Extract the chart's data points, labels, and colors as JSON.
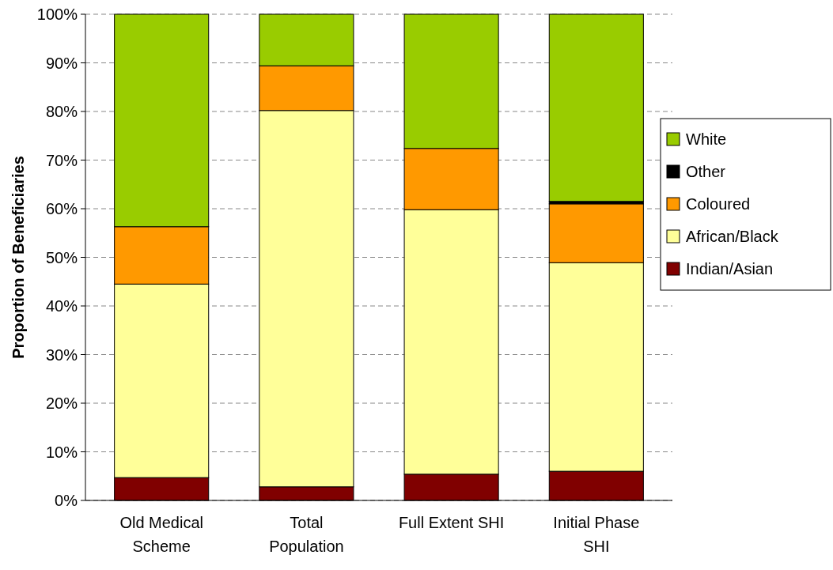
{
  "chart_data": {
    "type": "bar",
    "stacked": true,
    "ylabel": "Proportion of Beneficiaries",
    "categories": [
      "Old Medical\nScheme",
      "Total\nPopulation",
      "Full Extent SHI",
      "Initial Phase\nSHI"
    ],
    "series": [
      {
        "name": "Indian/Asian",
        "color": "#800000",
        "values": [
          4.7,
          2.8,
          5.4,
          6.0
        ]
      },
      {
        "name": "African/Black",
        "color": "#ffff99",
        "values": [
          39.8,
          77.4,
          54.4,
          42.9
        ]
      },
      {
        "name": "Coloured",
        "color": "#ff9900",
        "values": [
          11.8,
          9.2,
          12.6,
          12.1
        ]
      },
      {
        "name": "Other",
        "color": "#000000",
        "values": [
          0,
          0,
          0,
          0.5
        ]
      },
      {
        "name": "White",
        "color": "#99cc00",
        "values": [
          43.7,
          10.6,
          27.6,
          38.5
        ]
      }
    ],
    "ylim": [
      0,
      100
    ],
    "yticks": [
      {
        "value": 0,
        "label": "0%"
      },
      {
        "value": 10,
        "label": "10%"
      },
      {
        "value": 20,
        "label": "20%"
      },
      {
        "value": 30,
        "label": "30%"
      },
      {
        "value": 40,
        "label": "40%"
      },
      {
        "value": 50,
        "label": "50%"
      },
      {
        "value": 60,
        "label": "60%"
      },
      {
        "value": 70,
        "label": "70%"
      },
      {
        "value": 80,
        "label": "80%"
      },
      {
        "value": 90,
        "label": "90%"
      },
      {
        "value": 100,
        "label": "100%"
      }
    ],
    "grid": "y",
    "legend": "right"
  }
}
